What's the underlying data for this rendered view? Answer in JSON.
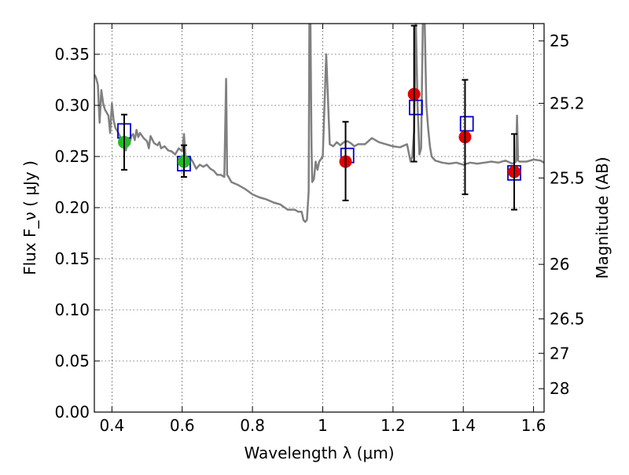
{
  "chart_data": {
    "type": "scatter",
    "xlabel": "Wavelength  λ (μm)",
    "ylabel": "Flux  F_ν  ( μJy )",
    "ylabel_right": "Magnitude (AB)",
    "xlim": [
      0.35,
      1.63
    ],
    "ylim": [
      0.0,
      0.38
    ],
    "grid": true,
    "x_ticks": [
      0.4,
      0.6,
      0.8,
      1.0,
      1.2,
      1.4,
      1.6
    ],
    "x_tick_labels": [
      "0.4",
      "0.6",
      "0.8",
      "1",
      "1.2",
      "1.4",
      "1.6"
    ],
    "y_ticks": [
      0.0,
      0.05,
      0.1,
      0.15,
      0.2,
      0.25,
      0.3,
      0.35
    ],
    "y_tick_labels": [
      "0.00",
      "0.05",
      "0.10",
      "0.15",
      "0.20",
      "0.25",
      "0.30",
      "0.35"
    ],
    "right_ticks": [
      {
        "label": "25",
        "flux": 0.3631
      },
      {
        "label": "25.2",
        "flux": 0.302
      },
      {
        "label": "25.5",
        "flux": 0.229
      },
      {
        "label": "26",
        "flux": 0.1445
      },
      {
        "label": "26.5",
        "flux": 0.0912
      },
      {
        "label": "27",
        "flux": 0.0575
      },
      {
        "label": "28",
        "flux": 0.0229
      }
    ],
    "series": [
      {
        "kind": "line",
        "color": "#808080",
        "x": [
          0.35,
          0.355,
          0.36,
          0.365,
          0.37,
          0.375,
          0.38,
          0.39,
          0.395,
          0.4,
          0.405,
          0.41,
          0.42,
          0.425,
          0.43,
          0.44,
          0.445,
          0.45,
          0.455,
          0.46,
          0.465,
          0.47,
          0.475,
          0.48,
          0.49,
          0.5,
          0.505,
          0.51,
          0.52,
          0.53,
          0.535,
          0.54,
          0.55,
          0.56,
          0.57,
          0.58,
          0.59,
          0.6,
          0.605,
          0.61,
          0.62,
          0.63,
          0.64,
          0.65,
          0.66,
          0.67,
          0.68,
          0.69,
          0.7,
          0.71,
          0.72,
          0.725,
          0.728,
          0.732,
          0.74,
          0.76,
          0.78,
          0.8,
          0.82,
          0.84,
          0.86,
          0.88,
          0.9,
          0.92,
          0.93,
          0.94,
          0.945,
          0.95,
          0.955,
          0.96,
          0.962,
          0.965,
          0.968,
          0.97,
          0.975,
          0.98,
          0.985,
          0.99,
          1.0,
          1.01,
          1.02,
          1.03,
          1.04,
          1.05,
          1.06,
          1.07,
          1.08,
          1.09,
          1.1,
          1.12,
          1.14,
          1.16,
          1.18,
          1.2,
          1.22,
          1.24,
          1.25,
          1.255,
          1.26,
          1.265,
          1.27,
          1.275,
          1.28,
          1.285,
          1.29,
          1.295,
          1.3,
          1.305,
          1.31,
          1.32,
          1.34,
          1.36,
          1.38,
          1.4,
          1.42,
          1.44,
          1.46,
          1.48,
          1.5,
          1.52,
          1.54,
          1.55,
          1.553,
          1.556,
          1.56,
          1.58,
          1.6,
          1.62,
          1.63
        ],
        "y": [
          0.33,
          0.327,
          0.32,
          0.283,
          0.315,
          0.302,
          0.296,
          0.29,
          0.273,
          0.302,
          0.285,
          0.278,
          0.272,
          0.268,
          0.264,
          0.256,
          0.268,
          0.262,
          0.27,
          0.272,
          0.266,
          0.276,
          0.269,
          0.273,
          0.268,
          0.265,
          0.258,
          0.27,
          0.263,
          0.261,
          0.264,
          0.258,
          0.26,
          0.256,
          0.255,
          0.252,
          0.258,
          0.255,
          0.272,
          0.248,
          0.25,
          0.245,
          0.238,
          0.242,
          0.24,
          0.242,
          0.238,
          0.236,
          0.232,
          0.232,
          0.23,
          0.326,
          0.232,
          0.23,
          0.225,
          0.222,
          0.218,
          0.213,
          0.21,
          0.208,
          0.205,
          0.203,
          0.198,
          0.198,
          0.196,
          0.196,
          0.188,
          0.186,
          0.188,
          0.216,
          0.383,
          0.383,
          0.26,
          0.225,
          0.228,
          0.245,
          0.237,
          0.245,
          0.25,
          0.35,
          0.262,
          0.26,
          0.264,
          0.261,
          0.264,
          0.265,
          0.263,
          0.26,
          0.262,
          0.262,
          0.268,
          0.264,
          0.262,
          0.26,
          0.259,
          0.262,
          0.245,
          0.25,
          0.275,
          0.383,
          0.3,
          0.252,
          0.258,
          0.383,
          0.383,
          0.3,
          0.278,
          0.26,
          0.25,
          0.246,
          0.244,
          0.243,
          0.244,
          0.242,
          0.244,
          0.243,
          0.244,
          0.245,
          0.244,
          0.246,
          0.243,
          0.245,
          0.29,
          0.246,
          0.245,
          0.245,
          0.247,
          0.246,
          0.244
        ]
      },
      {
        "name": "model",
        "kind": "open-square",
        "color": "#0000cc",
        "x": [
          0.435,
          0.605,
          1.07,
          1.265,
          1.41,
          1.545
        ],
        "y": [
          0.275,
          0.243,
          0.251,
          0.298,
          0.282,
          0.234
        ]
      },
      {
        "name": "green",
        "kind": "filled-circle",
        "color": "#22bb22",
        "x": [
          0.435,
          0.605
        ],
        "y": [
          0.264,
          0.245
        ]
      },
      {
        "name": "red",
        "kind": "filled-circle",
        "color": "#dd0000",
        "x": [
          1.065,
          1.26,
          1.405,
          1.545
        ],
        "y": [
          0.245,
          0.311,
          0.269,
          0.235
        ]
      },
      {
        "name": "errorbars",
        "kind": "errorbar",
        "color": "#000000",
        "x": [
          0.435,
          0.605,
          1.065,
          1.26,
          1.405,
          1.545
        ],
        "y": [
          0.264,
          0.245,
          0.245,
          0.311,
          0.269,
          0.235
        ],
        "ylow": [
          0.237,
          0.23,
          0.207,
          0.245,
          0.213,
          0.198
        ],
        "yhigh": [
          0.291,
          0.261,
          0.284,
          0.378,
          0.325,
          0.272
        ]
      }
    ]
  }
}
